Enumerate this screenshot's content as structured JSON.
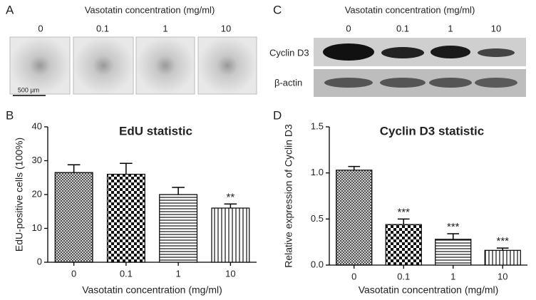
{
  "panel_a": {
    "letter": "A",
    "title": "Vasotatin concentration (mg/ml)",
    "labels": [
      "0",
      "0.1",
      "1",
      "10"
    ],
    "scale_bar": "500 µm"
  },
  "panel_c": {
    "letter": "C",
    "title": "Vasotatin concentration (mg/ml)",
    "labels": [
      "0",
      "0.1",
      "1",
      "10"
    ],
    "rows": [
      "Cyclin D3",
      "β-actin"
    ]
  },
  "chart_data": [
    {
      "type": "bar",
      "letter": "B",
      "title": "EdU statistic",
      "ylabel": "EdU-positive cells (100%)",
      "xlabel": "Vasotatin concentration (mg/ml)",
      "categories": [
        "0",
        "0.1",
        "1",
        "10"
      ],
      "values": [
        26.5,
        26,
        20,
        16
      ],
      "errors": [
        2.3,
        3.2,
        2.1,
        1.2
      ],
      "significance": [
        null,
        null,
        null,
        "**"
      ],
      "ylim": [
        0,
        40
      ],
      "yticks": [
        0,
        10,
        20,
        30,
        40
      ]
    },
    {
      "type": "bar",
      "letter": "D",
      "title": "Cyclin D3 statistic",
      "ylabel": "Relative expression of Cyclin D3",
      "xlabel": "Vasotatin concentration (mg/ml)",
      "categories": [
        "0",
        "0.1",
        "1",
        "10"
      ],
      "values": [
        1.03,
        0.44,
        0.28,
        0.16
      ],
      "errors": [
        0.04,
        0.06,
        0.06,
        0.025
      ],
      "significance": [
        null,
        "***",
        "***",
        "***"
      ],
      "ylim": [
        0,
        1.5
      ],
      "yticks": [
        {
          "value": 0,
          "label": "0.0"
        },
        {
          "value": 0.5,
          "label": "0.5"
        },
        {
          "value": 1,
          "label": "1.0"
        },
        {
          "value": 1.5,
          "label": "1.5"
        }
      ]
    }
  ]
}
